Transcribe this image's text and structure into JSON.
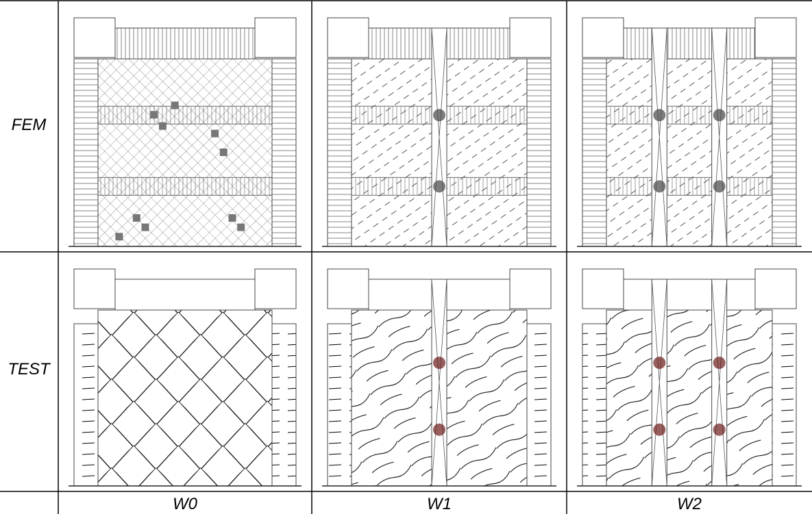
{
  "rows": [
    {
      "label": "FEM"
    },
    {
      "label": "TEST"
    }
  ],
  "columns": [
    "W0",
    "W1",
    "W2"
  ]
}
